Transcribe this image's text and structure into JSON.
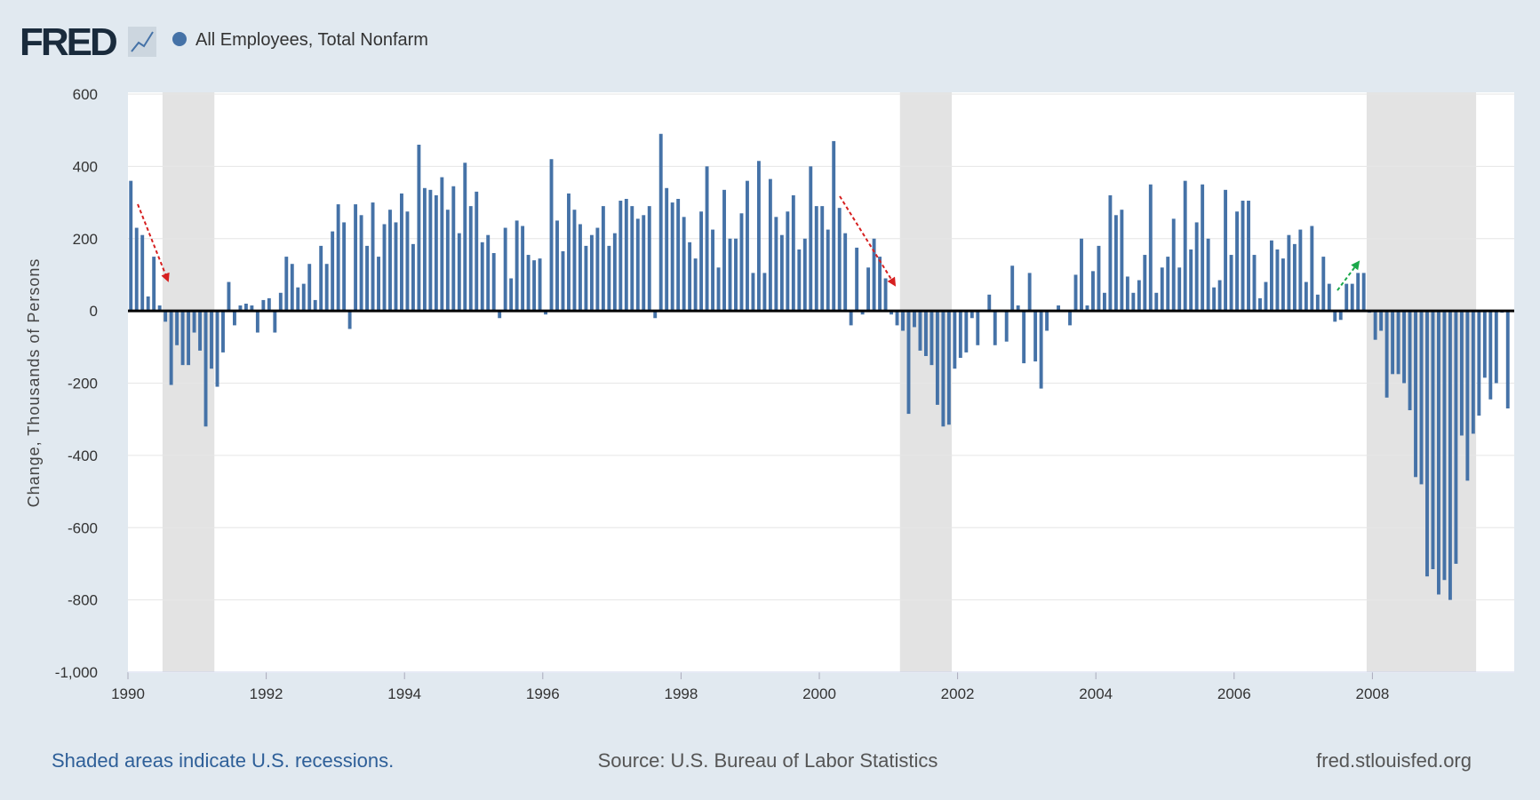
{
  "logo": "FRED",
  "chart_data": {
    "type": "bar",
    "ylabel": "Change, Thousands of Persons",
    "series": [
      {
        "name": "All Employees, Total Nonfarm",
        "color": "#4572a7",
        "values": [
          360,
          230,
          210,
          40,
          150,
          15,
          -30,
          -205,
          -95,
          -150,
          -150,
          -60,
          -110,
          -320,
          -160,
          -210,
          -115,
          80,
          -40,
          15,
          20,
          15,
          -60,
          30,
          35,
          -60,
          50,
          150,
          130,
          65,
          75,
          130,
          30,
          180,
          130,
          220,
          295,
          245,
          -50,
          295,
          265,
          180,
          300,
          150,
          240,
          280,
          245,
          325,
          275,
          185,
          460,
          340,
          335,
          320,
          370,
          280,
          345,
          215,
          410,
          290,
          330,
          190,
          210,
          160,
          -20,
          230,
          90,
          250,
          235,
          155,
          140,
          145,
          -10,
          420,
          250,
          165,
          325,
          280,
          240,
          180,
          210,
          230,
          290,
          180,
          215,
          305,
          310,
          290,
          255,
          265,
          290,
          -20,
          490,
          340,
          300,
          310,
          260,
          190,
          145,
          275,
          400,
          225,
          120,
          335,
          200,
          200,
          270,
          360,
          105,
          415,
          105,
          365,
          260,
          210,
          275,
          320,
          170,
          200,
          400,
          290,
          290,
          225,
          470,
          285,
          215,
          -40,
          175,
          -10,
          120,
          200,
          150,
          90,
          -10,
          -40,
          -55,
          -285,
          -45,
          -110,
          -125,
          -150,
          -260,
          -320,
          -315,
          -160,
          -130,
          -115,
          -20,
          -95,
          0,
          45,
          -95,
          0,
          -85,
          125,
          15,
          -145,
          105,
          -140,
          -215,
          -55,
          0,
          15,
          0,
          -40,
          100,
          200,
          15,
          110,
          180,
          50,
          320,
          265,
          280,
          95,
          50,
          85,
          155,
          350,
          50,
          120,
          150,
          255,
          120,
          360,
          170,
          245,
          350,
          200,
          65,
          85,
          335,
          155,
          275,
          305,
          305,
          155,
          35,
          80,
          195,
          170,
          145,
          210,
          185,
          225,
          80,
          235,
          45,
          150,
          75,
          -30,
          -25,
          75,
          75,
          105,
          105,
          -5,
          -80,
          -55,
          -240,
          -175,
          -175,
          -200,
          -275,
          -460,
          -480,
          -735,
          -715,
          -785,
          -745,
          -800,
          -700,
          -345,
          -470,
          -340,
          -290,
          -185,
          -245,
          -200,
          -5,
          -270
        ]
      }
    ],
    "x": [
      "1990-01",
      "1990-02",
      "1990-03",
      "1990-04",
      "1990-05",
      "1990-06",
      "1990-07",
      "1990-08",
      "1990-09",
      "1990-10",
      "1990-11",
      "1990-12",
      "1991-01",
      "1991-02",
      "1991-03",
      "1991-04",
      "1991-05",
      "1991-06",
      "1991-07",
      "1991-08",
      "1991-09",
      "1991-10",
      "1991-11",
      "1991-12",
      "1992-01",
      "1992-02",
      "1992-03",
      "1992-04",
      "1992-05",
      "1992-06",
      "1992-07",
      "1992-08",
      "1992-09",
      "1992-10",
      "1992-11",
      "1992-12",
      "1993-01",
      "1993-02",
      "1993-03",
      "1993-04",
      "1993-05",
      "1993-06",
      "1993-07",
      "1993-08",
      "1993-09",
      "1993-10",
      "1993-11",
      "1993-12",
      "1994-01",
      "1994-02",
      "1994-03",
      "1994-04",
      "1994-05",
      "1994-06",
      "1994-07",
      "1994-08",
      "1994-09",
      "1994-10",
      "1994-11",
      "1994-12",
      "1995-01",
      "1995-02",
      "1995-03",
      "1995-04",
      "1995-05",
      "1995-06",
      "1995-07",
      "1995-08",
      "1995-09",
      "1995-10",
      "1995-11",
      "1995-12",
      "1996-01",
      "1996-02",
      "1996-03",
      "1996-04",
      "1996-05",
      "1996-06",
      "1996-07",
      "1996-08",
      "1996-09",
      "1996-10",
      "1996-11",
      "1996-12",
      "1997-01",
      "1997-02",
      "1997-03",
      "1997-04",
      "1997-05",
      "1997-06",
      "1997-07",
      "1997-08",
      "1997-09",
      "1997-10",
      "1997-11",
      "1997-12",
      "1998-01",
      "1998-02",
      "1998-03",
      "1998-04",
      "1998-05",
      "1998-06",
      "1998-07",
      "1998-08",
      "1998-09",
      "1998-10",
      "1998-11",
      "1998-12",
      "1999-01",
      "1999-02",
      "1999-03",
      "1999-04",
      "1999-05",
      "1999-06",
      "1999-07",
      "1999-08",
      "1999-09",
      "1999-10",
      "1999-11",
      "1999-12",
      "2000-01",
      "2000-02",
      "2000-03",
      "2000-04",
      "2000-05",
      "2000-06",
      "2000-07",
      "2000-08",
      "2000-09",
      "2000-10",
      "2000-11",
      "2000-12",
      "2001-01",
      "2001-02",
      "2001-03",
      "2001-04",
      "2001-05",
      "2001-06",
      "2001-07",
      "2001-08",
      "2001-09",
      "2001-10",
      "2001-11",
      "2001-12",
      "2002-01",
      "2002-02",
      "2002-03",
      "2002-04",
      "2002-05",
      "2002-06",
      "2002-07",
      "2002-08",
      "2002-09",
      "2002-10",
      "2002-11",
      "2002-12",
      "2003-01",
      "2003-02",
      "2003-03",
      "2003-04",
      "2003-05",
      "2003-06",
      "2003-07",
      "2003-08",
      "2003-09",
      "2003-10",
      "2003-11",
      "2003-12",
      "2004-01",
      "2004-02",
      "2004-03",
      "2004-04",
      "2004-05",
      "2004-06",
      "2004-07",
      "2004-08",
      "2004-09",
      "2004-10",
      "2004-11",
      "2004-12",
      "2005-01",
      "2005-02",
      "2005-03",
      "2005-04",
      "2005-05",
      "2005-06",
      "2005-07",
      "2005-08",
      "2005-09",
      "2005-10",
      "2005-11",
      "2005-12",
      "2006-01",
      "2006-02",
      "2006-03",
      "2006-04",
      "2006-05",
      "2006-06",
      "2006-07",
      "2006-08",
      "2006-09",
      "2006-10",
      "2006-11",
      "2006-12",
      "2007-01",
      "2007-02",
      "2007-03",
      "2007-04",
      "2007-05",
      "2007-06",
      "2007-07",
      "2007-08",
      "2007-09",
      "2007-10",
      "2007-11",
      "2007-12",
      "2008-01",
      "2008-02",
      "2008-03",
      "2008-04",
      "2008-05",
      "2008-06",
      "2008-07",
      "2008-08",
      "2008-09",
      "2008-10",
      "2008-11",
      "2008-12",
      "2009-01",
      "2009-02",
      "2009-03",
      "2009-04",
      "2009-05",
      "2009-06",
      "2009-07",
      "2009-08",
      "2009-09",
      "2009-10",
      "2009-11",
      "2009-12"
    ],
    "recessions": [
      [
        "1990-07",
        "1991-03"
      ],
      [
        "2001-03",
        "2001-11"
      ],
      [
        "2007-12",
        "2009-06"
      ]
    ],
    "xlim": [
      1990,
      2010
    ],
    "xticks": [
      1990,
      1992,
      1994,
      1996,
      1998,
      2000,
      2002,
      2004,
      2006,
      2008
    ],
    "ylim": [
      -1000,
      600
    ],
    "yticks": [
      600,
      400,
      200,
      0,
      -200,
      -400,
      -600,
      -800,
      {
        "value": -1000,
        "label": "-1,000"
      }
    ],
    "grid": true
  },
  "footer": {
    "note": "Shaded areas indicate U.S. recessions.",
    "source": "Source: U.S. Bureau of Labor Statistics",
    "site": "fred.stlouisfed.org"
  }
}
